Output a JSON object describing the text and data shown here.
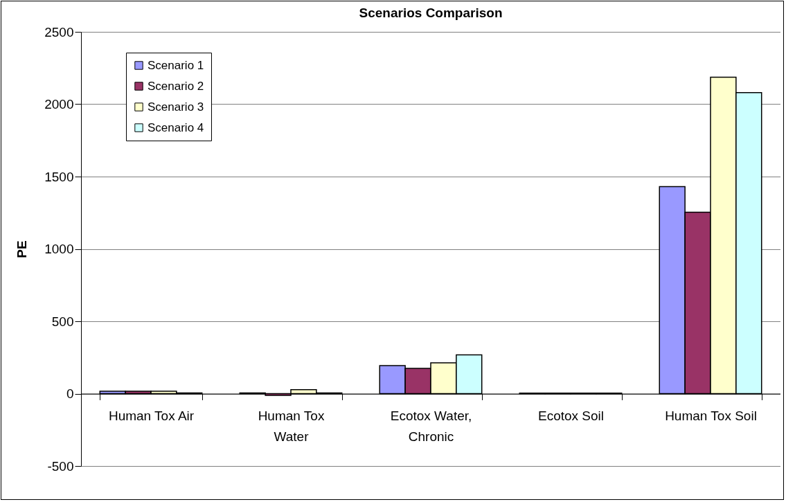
{
  "chart_data": {
    "type": "bar",
    "title": "Scenarios Comparison",
    "ylabel": "PE",
    "categories": [
      "Human Tox Air",
      "Human Tox Water",
      "Ecotox Water, Chronic",
      "Ecotox Soil",
      "Human Tox Soil"
    ],
    "series": [
      {
        "name": "Scenario 1",
        "color": "#9999ff",
        "values": [
          17,
          5,
          194,
          3,
          1431
        ]
      },
      {
        "name": "Scenario 2",
        "color": "#993366",
        "values": [
          17,
          -12,
          175,
          3,
          1254
        ]
      },
      {
        "name": "Scenario 3",
        "color": "#ffffcc",
        "values": [
          17,
          27,
          213,
          3,
          2187
        ]
      },
      {
        "name": "Scenario 4",
        "color": "#ccffff",
        "values": [
          5,
          5,
          268,
          3,
          2080
        ]
      }
    ],
    "ylim": [
      -500,
      2500
    ],
    "yticks": [
      -500,
      0,
      500,
      1000,
      1500,
      2000,
      2500
    ],
    "grid": "y",
    "legend": "top left"
  }
}
